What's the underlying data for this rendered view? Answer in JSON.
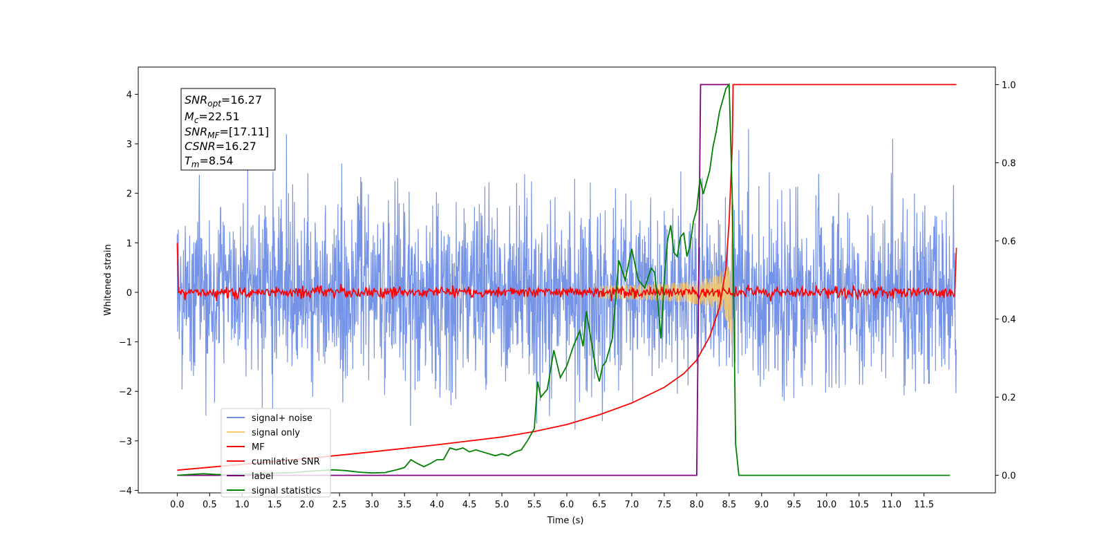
{
  "chart_data": {
    "type": "line",
    "xlabel": "Time (s)",
    "ylabel": "Whitened strain",
    "xlim": [
      -0.6,
      12.6
    ],
    "ylim": [
      -4.05,
      4.55
    ],
    "y2lim": [
      -0.045,
      1.045
    ],
    "x_tick_labels": [
      "0.0",
      "0.5",
      "1.0",
      "1.5",
      "2.0",
      "2.5",
      "3.0",
      "3.5",
      "4.0",
      "4.5",
      "5.0",
      "5.5",
      "6.0",
      "6.5",
      "7.0",
      "7.5",
      "8.0",
      "8.5",
      "9.0",
      "9.5",
      "10.0",
      "10.5",
      "11.0",
      "11.5"
    ],
    "y_tick_labels": [
      "4",
      "3",
      "2",
      "1",
      "0",
      "−1",
      "−2",
      "−3",
      "−4"
    ],
    "y2_tick_labels": [
      "1.0",
      "0.8",
      "0.6",
      "0.4",
      "0.2",
      "0.0"
    ],
    "annotation": {
      "snr_opt": {
        "base": "SNR",
        "sub": "opt",
        "value": "=16.27"
      },
      "mc": {
        "base": "M",
        "sub": "c",
        "value": "=22.51"
      },
      "snr_mf": {
        "base": "SNR",
        "sub": "MF",
        "value": "=[17.11]"
      },
      "csnr": {
        "base": "CSNR",
        "sub": "",
        "value": "=16.27"
      },
      "tm": {
        "base": "T",
        "sub": "m",
        "value": "=8.54"
      }
    },
    "legend": {
      "position": "lower left",
      "entries": [
        {
          "label": "signal+ noise",
          "color": "#6f8ee6"
        },
        {
          "label": "signal only",
          "color": "#f5c86e"
        },
        {
          "label": "MF",
          "color": "#ff0000"
        },
        {
          "label": "cumilative SNR",
          "color": "#ff0000"
        },
        {
          "label": "label",
          "color": "#800080"
        },
        {
          "label": "signal statistics",
          "color": "#008000"
        }
      ]
    },
    "series": [
      {
        "name": "signal+ noise",
        "axis": "left",
        "color": "#6f8ee6",
        "x_range": [
          0.0,
          12.0
        ],
        "noise_sigma": 0.9,
        "envelope_max": [
          2.4,
          3.3
        ],
        "envelope_min": [
          -2.6,
          -3.5
        ]
      },
      {
        "name": "signal only",
        "axis": "left",
        "color": "#f5c86e",
        "chirp_start": 6.5,
        "merger_time": 8.54,
        "peak_amplitude": 1.0
      },
      {
        "name": "MF",
        "axis": "left",
        "color": "#ff0000",
        "x_range": [
          0.0,
          12.0
        ],
        "level": 0.0,
        "jitter": 0.08,
        "start_value": 1.0,
        "end_value": 0.9
      },
      {
        "name": "cumilative SNR",
        "axis": "right",
        "color": "#ff0000",
        "x": [
          0.0,
          1.0,
          2.0,
          3.0,
          4.0,
          5.0,
          5.5,
          6.0,
          6.5,
          7.0,
          7.5,
          7.8,
          8.0,
          8.2,
          8.35,
          8.45,
          8.5,
          8.55,
          8.56,
          12.0
        ],
        "y": [
          0.013,
          0.028,
          0.043,
          0.06,
          0.078,
          0.098,
          0.112,
          0.13,
          0.155,
          0.185,
          0.225,
          0.26,
          0.295,
          0.355,
          0.43,
          0.53,
          0.65,
          0.85,
          1.0,
          1.0
        ]
      },
      {
        "name": "label",
        "axis": "right",
        "color": "#800080",
        "x": [
          0.0,
          8.0,
          8.06,
          8.5
        ],
        "y": [
          0.0,
          0.0,
          1.0,
          1.0
        ]
      },
      {
        "name": "signal statistics",
        "axis": "right",
        "color": "#008000",
        "x": [
          0.0,
          0.2,
          0.4,
          0.6,
          0.8,
          1.0,
          1.2,
          1.4,
          1.6,
          1.8,
          2.0,
          2.2,
          2.4,
          2.6,
          2.8,
          3.0,
          3.2,
          3.4,
          3.5,
          3.6,
          3.7,
          3.8,
          3.9,
          4.0,
          4.1,
          4.2,
          4.3,
          4.4,
          4.5,
          4.6,
          4.7,
          4.8,
          4.9,
          5.0,
          5.1,
          5.2,
          5.3,
          5.4,
          5.5,
          5.55,
          5.6,
          5.7,
          5.8,
          5.9,
          6.0,
          6.1,
          6.2,
          6.25,
          6.3,
          6.4,
          6.45,
          6.5,
          6.55,
          6.6,
          6.7,
          6.8,
          6.9,
          7.0,
          7.1,
          7.2,
          7.3,
          7.35,
          7.4,
          7.45,
          7.5,
          7.55,
          7.6,
          7.65,
          7.7,
          7.75,
          7.8,
          7.85,
          7.9,
          7.95,
          8.0,
          8.05,
          8.1,
          8.15,
          8.2,
          8.25,
          8.3,
          8.35,
          8.4,
          8.45,
          8.5,
          8.55,
          8.6,
          8.65,
          8.7,
          9.0,
          10.0,
          11.0,
          11.9
        ],
        "y": [
          0.0,
          0.002,
          0.004,
          0.002,
          0.001,
          0.002,
          0.003,
          0.005,
          0.006,
          0.007,
          0.01,
          0.012,
          0.014,
          0.012,
          0.008,
          0.006,
          0.007,
          0.015,
          0.02,
          0.04,
          0.03,
          0.022,
          0.03,
          0.04,
          0.04,
          0.07,
          0.065,
          0.07,
          0.06,
          0.065,
          0.06,
          0.055,
          0.05,
          0.055,
          0.05,
          0.06,
          0.065,
          0.09,
          0.12,
          0.24,
          0.2,
          0.22,
          0.32,
          0.25,
          0.28,
          0.33,
          0.37,
          0.33,
          0.42,
          0.32,
          0.27,
          0.24,
          0.28,
          0.29,
          0.35,
          0.55,
          0.5,
          0.58,
          0.5,
          0.48,
          0.53,
          0.52,
          0.45,
          0.35,
          0.5,
          0.6,
          0.64,
          0.57,
          0.56,
          0.61,
          0.62,
          0.56,
          0.59,
          0.65,
          0.68,
          0.76,
          0.72,
          0.75,
          0.78,
          0.84,
          0.88,
          0.93,
          0.96,
          0.99,
          1.0,
          0.7,
          0.08,
          0.0,
          0.0,
          0.0,
          0.0,
          0.0,
          0.0
        ]
      }
    ]
  }
}
